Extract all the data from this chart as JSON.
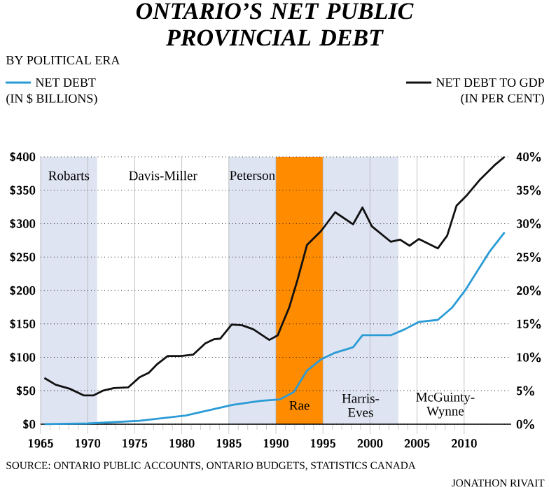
{
  "chart_data": {
    "type": "line",
    "title": "ONTARIO’S NET PUBLIC PROVINCIAL DEBT",
    "subtitle": "BY POLITICAL ERA",
    "ylabel": "(IN $ BILLIONS)",
    "y2label": "(IN PER CENT)",
    "legend": "top",
    "grid": true,
    "xlim": [
      1965,
      2015
    ],
    "xticks": [
      1965,
      1970,
      1975,
      1980,
      1985,
      1990,
      1995,
      2000,
      2005,
      2010
    ],
    "ylim": [
      0,
      400
    ],
    "yticks": [
      {
        "value": 0,
        "label": "$0"
      },
      {
        "value": 50,
        "label": "$50"
      },
      {
        "value": 100,
        "label": "$100"
      },
      {
        "value": 150,
        "label": "$150"
      },
      {
        "value": 200,
        "label": "$200"
      },
      {
        "value": 250,
        "label": "$250"
      },
      {
        "value": 300,
        "label": "$300"
      },
      {
        "value": 350,
        "label": "$350"
      },
      {
        "value": 400,
        "label": "$400"
      }
    ],
    "y2lim": [
      0,
      40
    ],
    "y2ticks": [
      {
        "value": 0,
        "label": "0%"
      },
      {
        "value": 5,
        "label": "5%"
      },
      {
        "value": 10,
        "label": "10%"
      },
      {
        "value": 15,
        "label": "15%"
      },
      {
        "value": 20,
        "label": "20%"
      },
      {
        "value": 25,
        "label": "25%"
      },
      {
        "value": 30,
        "label": "30%"
      },
      {
        "value": 35,
        "label": "35%"
      },
      {
        "value": 40,
        "label": "40%"
      }
    ],
    "series": [
      {
        "name": "NET DEBT",
        "color": "#2b9bd6",
        "x": [
          1965.4,
          1970,
          1975.5,
          1980.4,
          1985.4,
          1988.4,
          1990.4,
          1991.9,
          1993.3,
          1994.8,
          1996.3,
          1998.2,
          1999.2,
          2002.2,
          2003.7,
          2005.2,
          2007.2,
          2008.7,
          2010.2,
          2012.7,
          2014.3
        ],
        "values": [
          0,
          1,
          5,
          13,
          29,
          35,
          37,
          48,
          80,
          97,
          107,
          115,
          133,
          133,
          142,
          153,
          156,
          174,
          202,
          258,
          287
        ]
      },
      {
        "name": "NET DEBT TO GDP",
        "color": "#111111",
        "axis": "y2",
        "x": [
          1965.4,
          1966.6,
          1968.1,
          1969.6,
          1970.6,
          1971.6,
          1972.8,
          1974.3,
          1975.5,
          1976.5,
          1977.4,
          1978.5,
          1979.9,
          1981.2,
          1982.5,
          1983.4,
          1984.1,
          1985.3,
          1986.4,
          1987.6,
          1989.3,
          1990.2,
          1990.6,
          1991.4,
          1992.3,
          1993.3,
          1994.8,
          1996.3,
          1998.2,
          1999.2,
          2000.2,
          2002.2,
          2003.2,
          2004.2,
          2005.2,
          2007.2,
          2008.2,
          2009.2,
          2010.2,
          2011.7,
          2013.2,
          2014.3
        ],
        "values": [
          6.9,
          5.9,
          5.3,
          4.3,
          4.3,
          5.0,
          5.4,
          5.5,
          7.0,
          7.7,
          9.0,
          10.2,
          10.2,
          10.4,
          12.1,
          12.7,
          12.8,
          14.9,
          14.8,
          14.2,
          12.6,
          13.3,
          14.7,
          17.4,
          21.6,
          26.8,
          28.9,
          31.7,
          29.9,
          32.4,
          29.6,
          27.3,
          27.6,
          26.7,
          27.7,
          26.3,
          28.2,
          32.7,
          34.1,
          36.6,
          38.7,
          40.0
        ]
      }
    ],
    "bands": [
      {
        "axis": "x",
        "from": 1965,
        "to": 1971,
        "color": "#dfe4f2",
        "label": "Robarts"
      },
      {
        "axis": "x",
        "from": 1985,
        "to": 1990,
        "color": "#dfe4f2",
        "label": "Peterson"
      },
      {
        "axis": "x",
        "from": 1990,
        "to": 1995,
        "color": "#ff8c00",
        "label": "Rae"
      },
      {
        "axis": "x",
        "from": 1995,
        "to": 2003,
        "color": "#dfe4f2",
        "label": "Harris-Eves"
      }
    ],
    "annotations": [
      "Davis-Miller",
      "McGuinty-Wynne",
      "SOURCE: ONTARIO PUBLIC ACCOUNTS, ONTARIO BUDGETS, STATISTICS CANADA",
      "JONATHON RIVAIT"
    ]
  }
}
